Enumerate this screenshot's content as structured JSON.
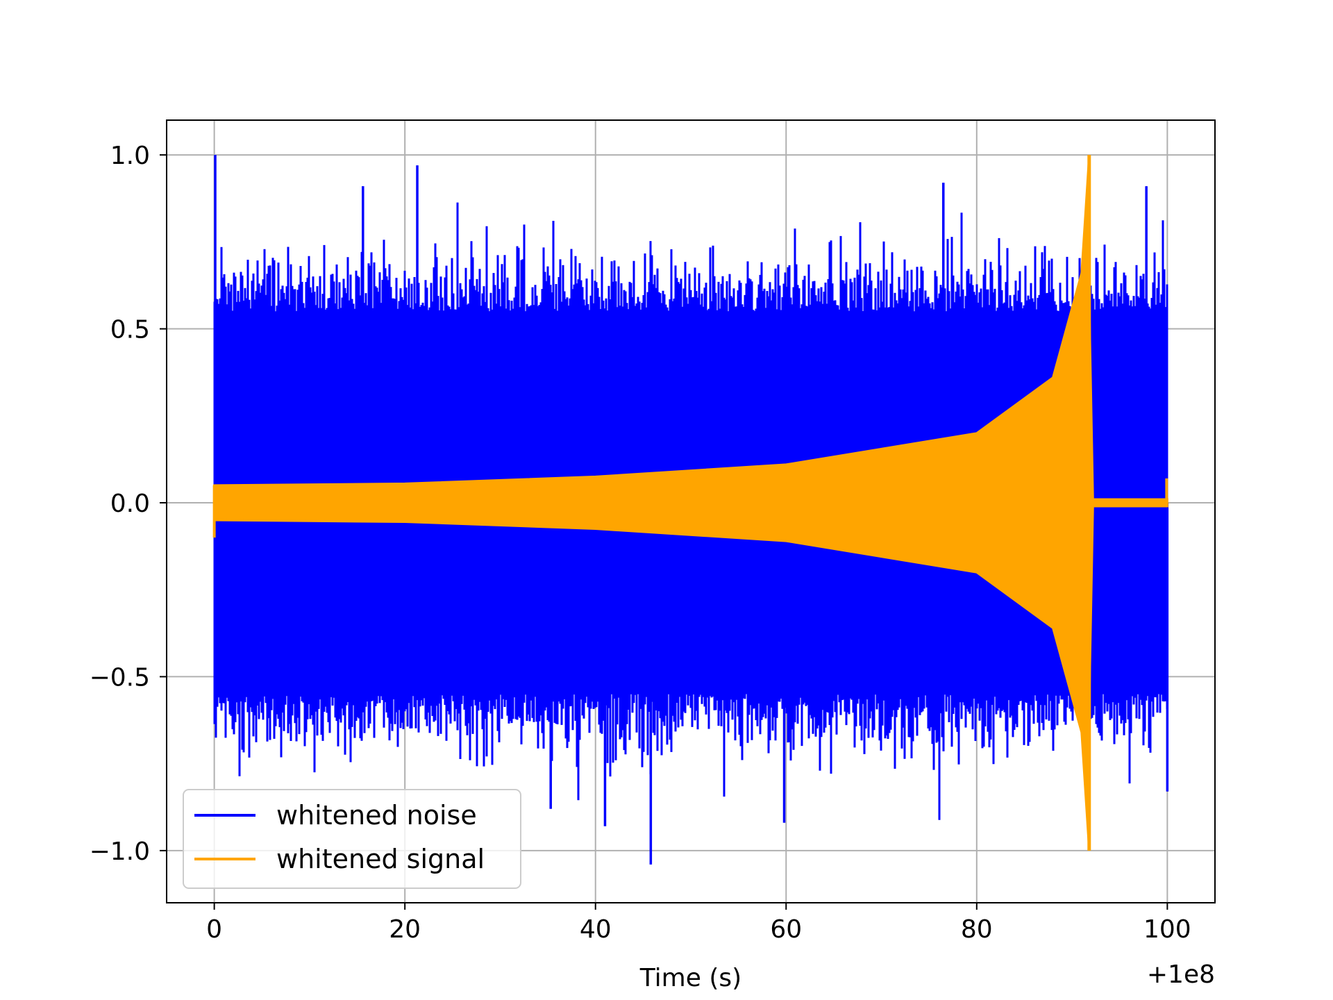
{
  "chart_data": {
    "type": "line",
    "title": "",
    "xlabel": "Time (s)",
    "ylabel": "",
    "x_offset_label": "+1e8",
    "xlim": [
      -5,
      105
    ],
    "ylim": [
      -1.15,
      1.1
    ],
    "grid": true,
    "legend_position": "lower-left",
    "x_ticks": [
      0,
      20,
      40,
      60,
      80,
      100
    ],
    "x_tick_labels": [
      "0",
      "20",
      "40",
      "60",
      "80",
      "100"
    ],
    "y_ticks": [
      1.0,
      0.5,
      0.0,
      -0.5,
      -1.0
    ],
    "y_tick_labels": [
      "1.0",
      "0.5",
      "0.0",
      "−0.5",
      "−1.0"
    ],
    "series": [
      {
        "name": "whitened noise",
        "color": "#0000ff",
        "x_range": [
          0,
          100
        ],
        "typical_amplitude": [
          -0.55,
          0.55
        ],
        "peak_values": [
          {
            "x": 0.1,
            "y": 1.0
          },
          {
            "x": 21.3,
            "y": 0.97
          },
          {
            "x": 15.6,
            "y": 0.91
          },
          {
            "x": 76.5,
            "y": 0.92
          },
          {
            "x": 45.8,
            "y": -1.04
          },
          {
            "x": 35.3,
            "y": -0.88
          },
          {
            "x": 41.0,
            "y": -0.93
          },
          {
            "x": 59.8,
            "y": -0.92
          },
          {
            "x": 97.8,
            "y": 0.91
          },
          {
            "x": 100.0,
            "y": -0.83
          }
        ]
      },
      {
        "name": "whitened signal",
        "color": "#ffa500",
        "x_range": [
          0,
          100
        ],
        "description_points": [
          {
            "x": 0,
            "y": 0.05
          },
          {
            "x": 20,
            "y": 0.055
          },
          {
            "x": 40,
            "y": 0.075
          },
          {
            "x": 60,
            "y": 0.11
          },
          {
            "x": 80,
            "y": 0.2
          },
          {
            "x": 88,
            "y": 0.36
          },
          {
            "x": 91,
            "y": 0.66
          },
          {
            "x": 91.8,
            "y": 1.0
          }
        ],
        "merger_time": 91.8,
        "ringdown_end": 92.2
      }
    ]
  }
}
